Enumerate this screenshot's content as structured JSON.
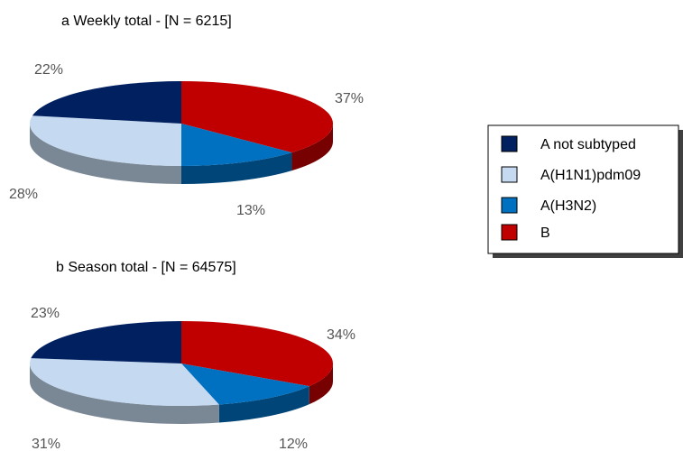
{
  "colors": {
    "A not subtyped": "#002060",
    "A(H1N1)pdm09": "#C5D9F1",
    "A(H3N2)": "#0070C0",
    "B": "#C00000"
  },
  "legend": {
    "items": [
      "A not subtyped",
      "A(H1N1)pdm09",
      "A(H3N2)",
      "B"
    ],
    "placement": "right"
  },
  "chart_data": [
    {
      "type": "pie",
      "title": "a  Weekly total - [N = 6215]",
      "categories": [
        "B",
        "A(H3N2)",
        "A(H1N1)pdm09",
        "A not subtyped"
      ],
      "values": [
        37,
        13,
        28,
        22
      ],
      "labels": [
        "37%",
        "13%",
        "28%",
        "22%"
      ]
    },
    {
      "type": "pie",
      "title": "b  Season total - [N = 64575]",
      "categories": [
        "B",
        "A(H3N2)",
        "A(H1N1)pdm09",
        "A not subtyped"
      ],
      "values": [
        34,
        12,
        31,
        23
      ],
      "labels": [
        "34%",
        "12%",
        "31%",
        "23%"
      ]
    }
  ]
}
